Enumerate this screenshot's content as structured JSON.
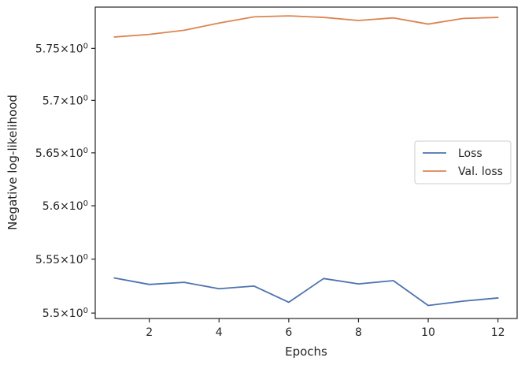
{
  "chart_data": {
    "type": "line",
    "xlabel": "Epochs",
    "ylabel": "Negative log-likelihood",
    "yscale": "log",
    "xlim": [
      0.45,
      12.55
    ],
    "ylim": [
      5.495,
      5.79
    ],
    "xticks": [
      2,
      4,
      6,
      8,
      10,
      12
    ],
    "xtick_labels": [
      "2",
      "4",
      "6",
      "8",
      "10",
      "12"
    ],
    "yticks": [
      5.5,
      5.55,
      5.6,
      5.65,
      5.7,
      5.75
    ],
    "ytick_mantissas": [
      "5.5",
      "5.55",
      "5.6",
      "5.65",
      "5.7",
      "5.75"
    ],
    "ytick_times": "×",
    "ytick_base": "10",
    "ytick_exp": "0",
    "grid": false,
    "legend_position": "center-right",
    "x": [
      1,
      2,
      3,
      4,
      5,
      6,
      7,
      8,
      9,
      10,
      11,
      12
    ],
    "series": [
      {
        "name": "Loss",
        "color": "#4c72b0",
        "values": [
          5.5325,
          5.5265,
          5.5285,
          5.5225,
          5.525,
          5.51,
          5.532,
          5.527,
          5.53,
          5.507,
          5.511,
          5.514
        ]
      },
      {
        "name": "Val. loss",
        "color": "#dd8452",
        "values": [
          5.761,
          5.7635,
          5.7675,
          5.7745,
          5.7805,
          5.7815,
          5.78,
          5.777,
          5.7795,
          5.7735,
          5.779,
          5.78
        ]
      }
    ]
  }
}
